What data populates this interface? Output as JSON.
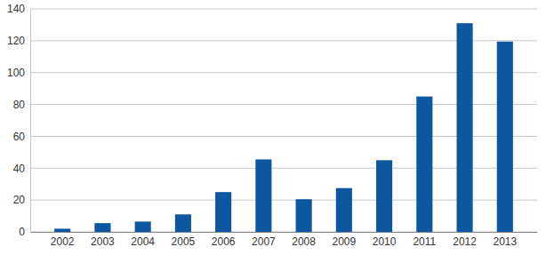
{
  "chart_data": {
    "type": "bar",
    "categories": [
      "2002",
      "2003",
      "2004",
      "2005",
      "2006",
      "2007",
      "2008",
      "2009",
      "2010",
      "2011",
      "2012",
      "2013"
    ],
    "values": [
      2,
      5.5,
      6.5,
      11,
      25,
      45.5,
      20.5,
      27.5,
      45,
      85,
      131,
      119.5
    ],
    "color": "#0d56a0",
    "ylim": [
      0,
      140
    ],
    "yticks": [
      0,
      20,
      40,
      60,
      80,
      100,
      120,
      140
    ],
    "grid": true
  }
}
